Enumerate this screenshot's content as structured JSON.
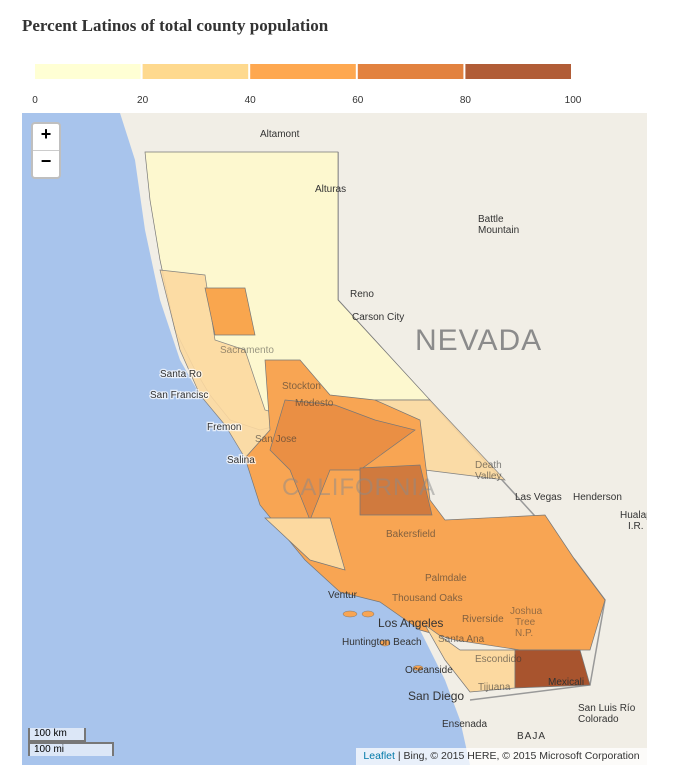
{
  "header": {
    "title": "Percent Latinos of total county population"
  },
  "legend": {
    "ticks": [
      0,
      20,
      40,
      60,
      80,
      100
    ],
    "colors": [
      "#ffffd4",
      "#fed98e",
      "#fea850",
      "#e2823f",
      "#b15d37"
    ]
  },
  "controls": {
    "zoom_in": "+",
    "zoom_out": "−"
  },
  "places": {
    "altamont": "Altamont",
    "alturas": "Alturas",
    "battle_mountain_1": "Battle",
    "battle_mountain_2": "Mountain",
    "reno": "Reno",
    "carson_city": "Carson City",
    "nevada": "NEVADA",
    "santa_rosa": "Santa Ro",
    "san_francisco": "San Francisc",
    "fremont": "Fremon",
    "sacramento": "Sacramento",
    "stockton": "Stockton",
    "modesto": "Modesto",
    "san_jose": "San Jose",
    "salinas": "Salina",
    "california": "CALIFORNIA",
    "death_valley_1": "Death",
    "death_valley_2": "Valley",
    "las_vegas": "Las Vegas",
    "henderson": "Henderson",
    "hualapai_1": "Hualap",
    "hualapai_2": "I.R.",
    "bakersfield": "Bakersfield",
    "palmdale": "Palmdale",
    "ventura": "Ventur",
    "thousand_oaks": "Thousand Oaks",
    "los_angeles": "Los Angeles",
    "riverside": "Riverside",
    "joshua_tree_1": "Joshua",
    "joshua_tree_2": "Tree",
    "joshua_tree_3": "N.P.",
    "huntington_beach": "Huntington Beach",
    "santa_ana": "Santa Ana",
    "oceanside": "Oceanside",
    "escondido": "Escondido",
    "san_diego": "San Diego",
    "tijuana": "Tijuana",
    "mexicali": "Mexicali",
    "ensenada": "Ensenada",
    "baja": "BAJA",
    "san_luis_1": "San Luis Río",
    "san_luis_2": "Colorado"
  },
  "scale": {
    "km": "100 km",
    "mi": "100 mi"
  },
  "attribution": {
    "leaflet": "Leaflet",
    "rest": " | Bing, © 2015 HERE, © 2015 Microsoft Corporation"
  }
}
